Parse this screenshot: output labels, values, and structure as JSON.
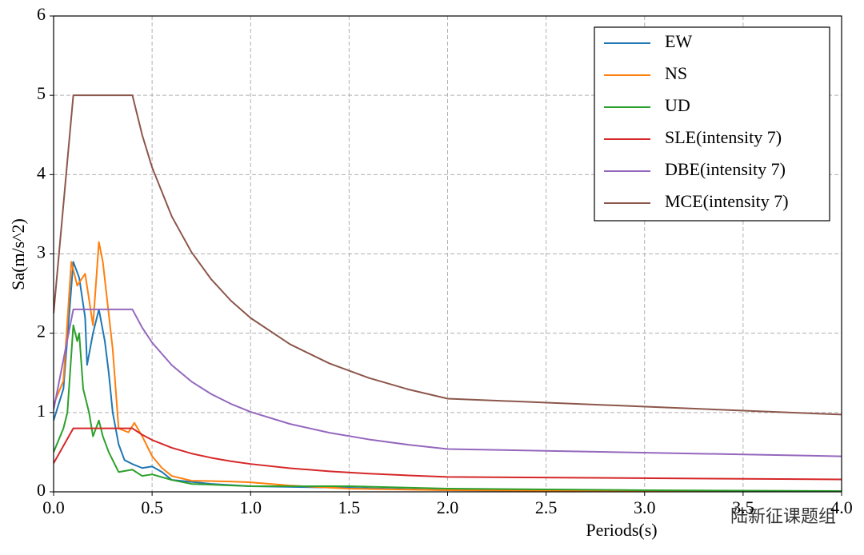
{
  "chart_data": {
    "type": "line",
    "xlabel": "Periods(s)",
    "ylabel": "Sa(m/s^2)",
    "xlim": [
      0,
      4
    ],
    "ylim": [
      0,
      6
    ],
    "xticks": [
      {
        "value": 0,
        "label": "0.0"
      },
      0.5,
      {
        "value": 1,
        "label": "1.0"
      },
      1.5,
      {
        "value": 2,
        "label": "2.0"
      },
      2.5,
      {
        "value": 3,
        "label": "3.0"
      },
      3.5,
      {
        "value": 4,
        "label": "4.0"
      }
    ],
    "yticks": [
      0,
      1,
      2,
      3,
      4,
      5,
      6
    ],
    "grid": true,
    "legend": "upper right",
    "watermark": "陆新征课题组",
    "series": [
      {
        "name": "EW",
        "color": "#1f77b4",
        "x": [
          0,
          0.05,
          0.1,
          0.13,
          0.16,
          0.17,
          0.2,
          0.23,
          0.26,
          0.28,
          0.3,
          0.33,
          0.36,
          0.4,
          0.45,
          0.5,
          0.55,
          0.6,
          0.8,
          1.0,
          1.5,
          2.0,
          3.0,
          4.0
        ],
        "values": [
          0.9,
          1.3,
          2.9,
          2.7,
          2.2,
          1.6,
          2.0,
          2.3,
          1.9,
          1.5,
          1.0,
          0.6,
          0.4,
          0.35,
          0.3,
          0.32,
          0.25,
          0.15,
          0.1,
          0.07,
          0.05,
          0.02,
          0.01,
          0.005
        ]
      },
      {
        "name": "NS",
        "color": "#ff7f0e",
        "x": [
          0,
          0.05,
          0.09,
          0.12,
          0.16,
          0.2,
          0.23,
          0.25,
          0.3,
          0.33,
          0.38,
          0.41,
          0.45,
          0.5,
          0.55,
          0.6,
          0.7,
          0.9,
          1.0,
          1.2,
          1.5,
          2.0,
          3.0,
          4.0
        ],
        "values": [
          1.1,
          1.4,
          2.9,
          2.6,
          2.75,
          2.1,
          3.15,
          2.9,
          1.8,
          0.8,
          0.75,
          0.87,
          0.7,
          0.45,
          0.3,
          0.2,
          0.14,
          0.13,
          0.12,
          0.08,
          0.04,
          0.02,
          0.01,
          0.005
        ]
      },
      {
        "name": "UD",
        "color": "#2ca02c",
        "x": [
          0,
          0.05,
          0.07,
          0.1,
          0.12,
          0.13,
          0.15,
          0.18,
          0.2,
          0.23,
          0.25,
          0.28,
          0.33,
          0.4,
          0.45,
          0.5,
          0.6,
          0.7,
          1.0,
          1.5,
          2.0,
          3.0,
          4.0
        ],
        "values": [
          0.5,
          0.8,
          1.0,
          2.1,
          1.9,
          2.0,
          1.3,
          1.0,
          0.7,
          0.9,
          0.7,
          0.5,
          0.25,
          0.28,
          0.2,
          0.22,
          0.15,
          0.1,
          0.07,
          0.07,
          0.04,
          0.02,
          0.01
        ]
      },
      {
        "name": "SLE(intensity 7)",
        "color": "#d62728",
        "x": [
          0,
          0.1,
          0.4,
          0.45,
          0.5,
          0.6,
          0.7,
          0.8,
          0.9,
          1.0,
          1.2,
          1.4,
          1.6,
          1.8,
          2.0,
          4.0
        ],
        "values": [
          0.36,
          0.8,
          0.8,
          0.72,
          0.654,
          0.555,
          0.483,
          0.429,
          0.386,
          0.351,
          0.298,
          0.259,
          0.23,
          0.207,
          0.188,
          0.156
        ]
      },
      {
        "name": "DBE(intensity 7)",
        "color": "#9467bd",
        "x": [
          0,
          0.1,
          0.4,
          0.45,
          0.5,
          0.6,
          0.7,
          0.8,
          0.9,
          1.0,
          1.2,
          1.4,
          1.6,
          1.8,
          2.0,
          4.0
        ],
        "values": [
          1.035,
          2.3,
          2.3,
          2.069,
          1.882,
          1.597,
          1.39,
          1.233,
          1.109,
          1.008,
          0.856,
          0.745,
          0.661,
          0.594,
          0.54,
          0.448
        ]
      },
      {
        "name": "MCE(intensity 7)",
        "color": "#8c564b",
        "x": [
          0,
          0.1,
          0.4,
          0.45,
          0.5,
          0.6,
          0.7,
          0.8,
          0.9,
          1.0,
          1.2,
          1.4,
          1.6,
          1.8,
          2.0,
          4.0
        ],
        "values": [
          2.25,
          5,
          5,
          4.497,
          4.091,
          3.472,
          3.022,
          2.68,
          2.41,
          2.192,
          1.861,
          1.619,
          1.436,
          1.292,
          1.175,
          0.974
        ]
      }
    ]
  }
}
